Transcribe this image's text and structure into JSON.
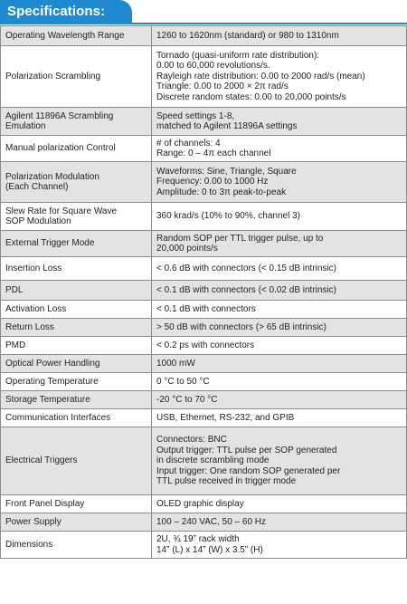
{
  "section_title": "Specifications:",
  "rows": [
    {
      "label": [
        "Operating Wavelength Range"
      ],
      "value": [
        "1260 to 1620nm (standard) or 980 to 1310nm"
      ]
    },
    {
      "label": [
        "Polarization Scrambling"
      ],
      "value": [
        "Tornado (quasi-uniform rate distribution):",
        "0.00 to 60,000 revolutions/s.",
        "Rayleigh rate distribution: 0.00 to 2000 rad/s (mean)",
        "Triangle: 0.00  to 2000 × 2π rad/s",
        "Discrete random states: 0.00 to 20,000 points/s"
      ]
    },
    {
      "label": [
        "Agilent 11896A Scrambling",
        "Emulation"
      ],
      "value": [
        "Speed settings 1-8,",
        "matched to Agilent 11896A settings"
      ]
    },
    {
      "label": [
        "Manual polarization Control"
      ],
      "value": [
        "# of channels: 4",
        "Range: 0 – 4π each channel"
      ]
    },
    {
      "label": [
        "Polarization Modulation",
        "(Each Channel)"
      ],
      "value": [
        "Waveforms: Sine, Triangle, Square",
        "Frequency: 0.00 to 1000 Hz",
        "Amplitude: 0 to 3π peak-to-peak"
      ]
    },
    {
      "label": [
        "Slew Rate for Square Wave",
        "SOP Modulation"
      ],
      "value": [
        "360 krad/s (10% to 90%, channel 3)"
      ]
    },
    {
      "label": [
        "External Trigger Mode"
      ],
      "value": [
        "Random SOP per TTL trigger pulse, up to",
        "20,000 points/s"
      ]
    },
    {
      "label": [
        "Insertion Loss"
      ],
      "value": [
        "< 0.6 dB with connectors (< 0.15 dB intrinsic)"
      ]
    },
    {
      "label": [
        "PDL"
      ],
      "value": [
        "< 0.1 dB with connectors (< 0.02 dB intrinsic)"
      ]
    },
    {
      "label": [
        "Activation Loss"
      ],
      "value": [
        "< 0.1 dB with connectors"
      ]
    },
    {
      "label": [
        "Return Loss"
      ],
      "value": [
        "> 50 dB with connectors (> 65 dB intrinsic)"
      ]
    },
    {
      "label": [
        "PMD"
      ],
      "value": [
        "< 0.2 ps with connectors"
      ]
    },
    {
      "label": [
        "Optical Power Handling"
      ],
      "value": [
        "1000 mW"
      ]
    },
    {
      "label": [
        "Operating Temperature"
      ],
      "value": [
        "0 °C to 50 °C"
      ]
    },
    {
      "label": [
        "Storage Temperature"
      ],
      "value": [
        "-20 °C  to 70 °C"
      ]
    },
    {
      "label": [
        "Communication Interfaces"
      ],
      "value": [
        "USB, Ethernet, RS-232, and GPIB"
      ]
    },
    {
      "label": [
        "Electrical Triggers"
      ],
      "value": [
        "Connectors: BNC",
        "Output trigger: TTL pulse per SOP generated",
        "in discrete scrambling mode",
        "Input trigger: One random SOP generated per",
        "TTL pulse received in trigger mode"
      ]
    },
    {
      "label": [
        "Front Panel Display"
      ],
      "value": [
        "OLED graphic display"
      ]
    },
    {
      "label": [
        "Power Supply"
      ],
      "value": [
        "100 – 240 VAC, 50 – 60 Hz"
      ]
    },
    {
      "label": [
        "Dimensions"
      ],
      "value": [
        "2U, ¾ 19” rack width",
        "14” (L) x 14” (W) x 3.5” (H)"
      ]
    }
  ]
}
